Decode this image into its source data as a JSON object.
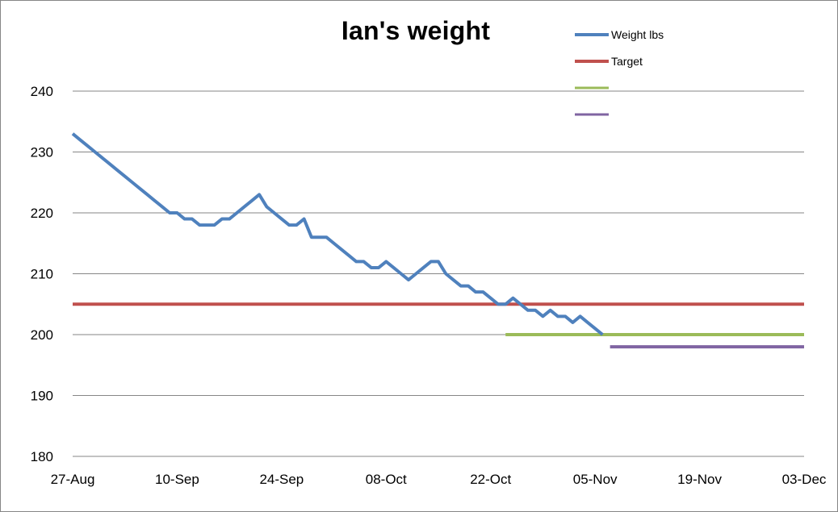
{
  "chart_data": {
    "type": "line",
    "title": "Ian's weight",
    "xlabel": "",
    "ylabel": "",
    "x_axis": "date",
    "xlim": [
      "27-Aug",
      "03-Dec"
    ],
    "ylim": [
      180,
      240
    ],
    "x_ticks": [
      "27-Aug",
      "10-Sep",
      "24-Sep",
      "08-Oct",
      "22-Oct",
      "05-Nov",
      "19-Nov",
      "03-Dec"
    ],
    "y_ticks": [
      180,
      190,
      200,
      210,
      220,
      230,
      240
    ],
    "grid": "horizontal",
    "legend_placement": "top-right",
    "series": [
      {
        "name": "Weight lbs",
        "color": "#4F81BD",
        "points": [
          [
            "27-Aug",
            233
          ],
          [
            "28-Aug",
            232
          ],
          [
            "29-Aug",
            231
          ],
          [
            "30-Aug",
            230
          ],
          [
            "31-Aug",
            229
          ],
          [
            "01-Sep",
            228
          ],
          [
            "02-Sep",
            227
          ],
          [
            "03-Sep",
            226
          ],
          [
            "04-Sep",
            225
          ],
          [
            "05-Sep",
            224
          ],
          [
            "06-Sep",
            223
          ],
          [
            "07-Sep",
            222
          ],
          [
            "08-Sep",
            221
          ],
          [
            "09-Sep",
            220
          ],
          [
            "10-Sep",
            220
          ],
          [
            "11-Sep",
            219
          ],
          [
            "12-Sep",
            219
          ],
          [
            "13-Sep",
            218
          ],
          [
            "14-Sep",
            218
          ],
          [
            "15-Sep",
            218
          ],
          [
            "16-Sep",
            219
          ],
          [
            "17-Sep",
            219
          ],
          [
            "18-Sep",
            220
          ],
          [
            "19-Sep",
            221
          ],
          [
            "20-Sep",
            222
          ],
          [
            "21-Sep",
            223
          ],
          [
            "22-Sep",
            221
          ],
          [
            "23-Sep",
            220
          ],
          [
            "24-Sep",
            219
          ],
          [
            "25-Sep",
            218
          ],
          [
            "26-Sep",
            218
          ],
          [
            "27-Sep",
            219
          ],
          [
            "28-Sep",
            216
          ],
          [
            "29-Sep",
            216
          ],
          [
            "30-Sep",
            216
          ],
          [
            "01-Oct",
            215
          ],
          [
            "02-Oct",
            214
          ],
          [
            "03-Oct",
            213
          ],
          [
            "04-Oct",
            212
          ],
          [
            "05-Oct",
            212
          ],
          [
            "06-Oct",
            211
          ],
          [
            "07-Oct",
            211
          ],
          [
            "08-Oct",
            212
          ],
          [
            "09-Oct",
            211
          ],
          [
            "10-Oct",
            210
          ],
          [
            "11-Oct",
            209
          ],
          [
            "12-Oct",
            210
          ],
          [
            "13-Oct",
            211
          ],
          [
            "14-Oct",
            212
          ],
          [
            "15-Oct",
            212
          ],
          [
            "16-Oct",
            210
          ],
          [
            "17-Oct",
            209
          ],
          [
            "18-Oct",
            208
          ],
          [
            "19-Oct",
            208
          ],
          [
            "20-Oct",
            207
          ],
          [
            "21-Oct",
            207
          ],
          [
            "22-Oct",
            206
          ],
          [
            "23-Oct",
            205
          ],
          [
            "24-Oct",
            205
          ],
          [
            "25-Oct",
            206
          ],
          [
            "26-Oct",
            205
          ],
          [
            "27-Oct",
            204
          ],
          [
            "28-Oct",
            204
          ],
          [
            "29-Oct",
            203
          ],
          [
            "30-Oct",
            204
          ],
          [
            "31-Oct",
            203
          ],
          [
            "01-Nov",
            203
          ],
          [
            "02-Nov",
            202
          ],
          [
            "03-Nov",
            203
          ],
          [
            "04-Nov",
            202
          ],
          [
            "05-Nov",
            201
          ],
          [
            "06-Nov",
            200
          ]
        ]
      },
      {
        "name": "Target",
        "color": "#C0504D",
        "points": [
          [
            "27-Aug",
            205
          ],
          [
            "03-Dec",
            205
          ]
        ]
      },
      {
        "name": "",
        "color": "#9BBB59",
        "points": [
          [
            "24-Oct",
            200
          ],
          [
            "03-Dec",
            200
          ]
        ]
      },
      {
        "name": "",
        "color": "#8064A2",
        "points": [
          [
            "07-Nov",
            198
          ],
          [
            "03-Dec",
            198
          ]
        ]
      }
    ]
  }
}
